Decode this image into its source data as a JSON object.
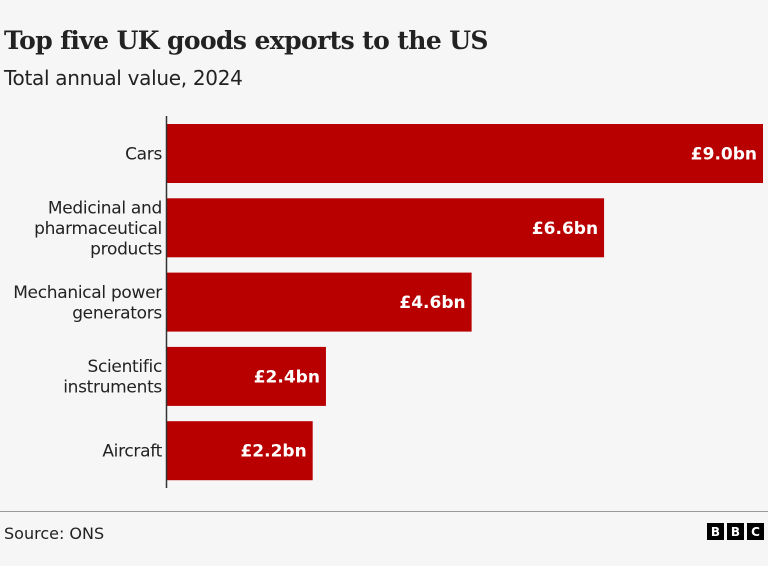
{
  "chart_data": {
    "type": "bar",
    "orientation": "horizontal",
    "title": "Top five UK goods exports to the US",
    "subtitle": "Total annual value, 2024",
    "categories": [
      [
        "Cars"
      ],
      [
        "Medicinal and",
        "pharmaceutical",
        "products"
      ],
      [
        "Mechanical power",
        "generators"
      ],
      [
        "Scientific",
        "instruments"
      ],
      [
        "Aircraft"
      ]
    ],
    "values": [
      9.0,
      6.6,
      4.6,
      2.4,
      2.2
    ],
    "data_labels": [
      "£9.0bn",
      "£6.6bn",
      "£4.6bn",
      "£2.4bn",
      "£2.2bn"
    ],
    "unit": "£bn",
    "xlim": [
      0,
      9.0
    ],
    "grid": false,
    "bar_color": "#b80000",
    "source": "Source: ONS"
  },
  "branding": {
    "logo": [
      "B",
      "B",
      "C"
    ]
  }
}
